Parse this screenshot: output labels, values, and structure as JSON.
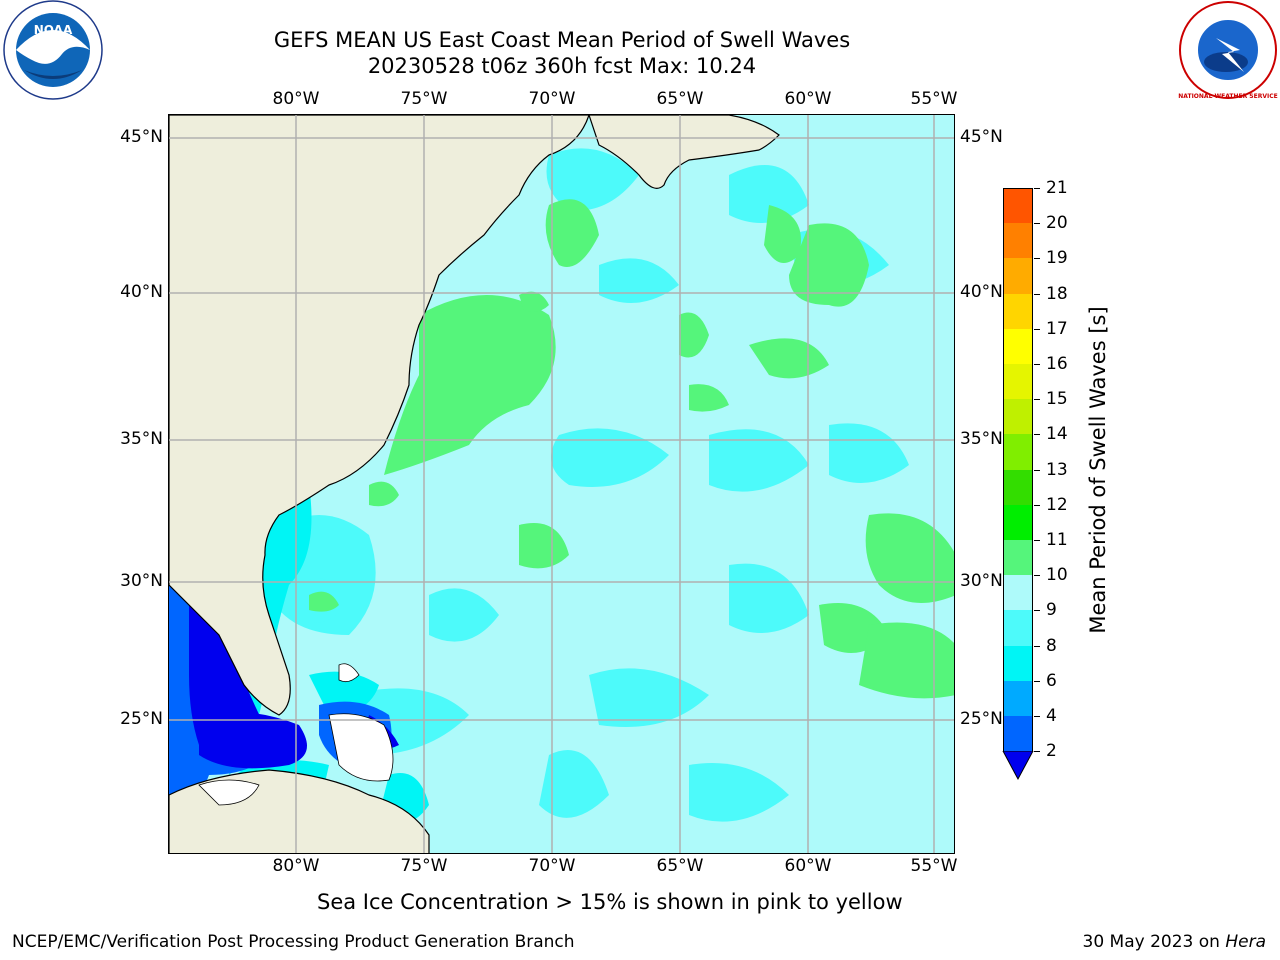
{
  "header": {
    "title_line1": "GEFS MEAN US East Coast Mean Period of Swell Waves",
    "title_line2": "20230528 t06z 360h fcst   Max: 10.24"
  },
  "logos": {
    "left_icon": "noaa-logo",
    "right_icon": "national-weather-service-logo",
    "left_text": "NOAA",
    "right_text": "NATIONAL WEATHER SERVICE"
  },
  "map": {
    "lon_labels": [
      "80°W",
      "75°W",
      "70°W",
      "65°W",
      "60°W",
      "55°W"
    ],
    "lat_labels": [
      "45°N",
      "40°N",
      "35°N",
      "30°N",
      "25°N"
    ],
    "extent": {
      "lon_min": -85,
      "lon_max": -54.5,
      "lat_min": 20.5,
      "lat_max": 45.8
    },
    "colors": {
      "land": "#eeeedc",
      "gridline": "#b0b0b0",
      "ocean_8_9": "#aefafa"
    }
  },
  "colorbar": {
    "label": "Mean Period of Swell Waves [s]",
    "ticks": [
      "21",
      "20",
      "19",
      "18",
      "17",
      "16",
      "15",
      "14",
      "13",
      "12",
      "11",
      "10",
      "9",
      "8",
      "6",
      "4",
      "2"
    ],
    "colors": [
      "#ff0000",
      "#ff2a00",
      "#ff5500",
      "#ff8000",
      "#ffab00",
      "#ffd500",
      "#ffff00",
      "#e5f500",
      "#bff000",
      "#80ee00",
      "#33dd00",
      "#00ee00",
      "#55f57b",
      "#aefafa",
      "#4dfafa",
      "#00f5f5",
      "#00aaff",
      "#0066ff",
      "#0000ee"
    ]
  },
  "footer": {
    "sea_ice_note": "Sea Ice Concentration > 15% is shown in pink to yellow",
    "branch": "NCEP/EMC/Verification Post Processing Product Generation Branch",
    "date": "30 May 2023 on",
    "host": "Hera"
  }
}
